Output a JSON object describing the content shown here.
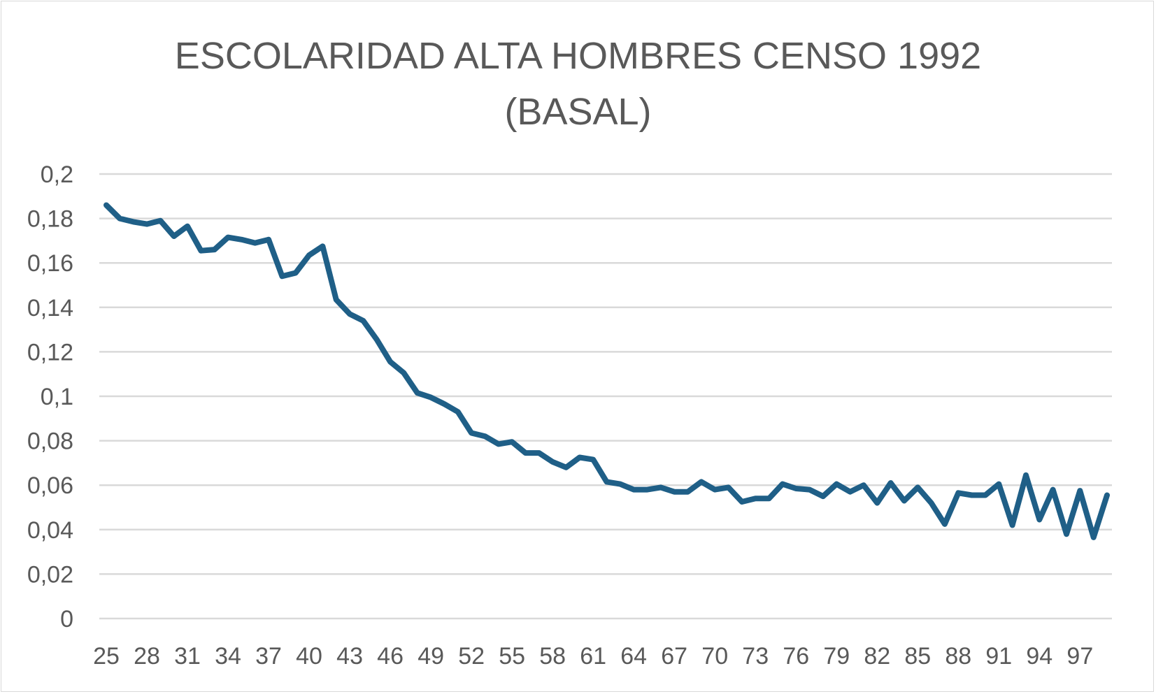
{
  "chart_data": {
    "type": "line",
    "title_lines": [
      "ESCOLARIDAD ALTA HOMBRES CENSO 1992",
      "(BASAL)"
    ],
    "xlabel": "",
    "ylabel": "",
    "ylim": [
      0,
      0.2
    ],
    "y_ticks": [
      "0",
      "0,02",
      "0,04",
      "0,06",
      "0,08",
      "0,1",
      "0,12",
      "0,14",
      "0,16",
      "0,18",
      "0,2"
    ],
    "x_tick_labels": [
      "25",
      "28",
      "31",
      "34",
      "37",
      "40",
      "43",
      "46",
      "49",
      "52",
      "55",
      "58",
      "61",
      "64",
      "67",
      "70",
      "73",
      "76",
      "79",
      "82",
      "85",
      "88",
      "91",
      "94",
      "97"
    ],
    "x_tick_every": 3,
    "grid": true,
    "legend": "none",
    "series_color": "#1f5f87",
    "x": [
      25,
      26,
      27,
      28,
      29,
      30,
      31,
      32,
      33,
      34,
      35,
      36,
      37,
      38,
      39,
      40,
      41,
      42,
      43,
      44,
      45,
      46,
      47,
      48,
      49,
      50,
      51,
      52,
      53,
      54,
      55,
      56,
      57,
      58,
      59,
      60,
      61,
      62,
      63,
      64,
      65,
      66,
      67,
      68,
      69,
      70,
      71,
      72,
      73,
      74,
      75,
      76,
      77,
      78,
      79,
      80,
      81,
      82,
      83,
      84,
      85,
      86,
      87,
      88,
      89,
      90,
      91,
      92,
      93,
      94,
      95,
      96,
      97,
      98,
      99
    ],
    "values": [
      0.186,
      0.18,
      0.1785,
      0.1775,
      0.179,
      0.172,
      0.1765,
      0.1655,
      0.166,
      0.1715,
      0.1705,
      0.169,
      0.1705,
      0.154,
      0.1555,
      0.1635,
      0.1675,
      0.1435,
      0.137,
      0.134,
      0.1255,
      0.1155,
      0.1105,
      0.1015,
      0.0995,
      0.0965,
      0.093,
      0.0835,
      0.082,
      0.0785,
      0.0795,
      0.0745,
      0.0745,
      0.0705,
      0.068,
      0.0725,
      0.0715,
      0.0615,
      0.0605,
      0.058,
      0.058,
      0.059,
      0.057,
      0.057,
      0.0615,
      0.058,
      0.059,
      0.0525,
      0.054,
      0.054,
      0.0605,
      0.0585,
      0.058,
      0.055,
      0.0605,
      0.057,
      0.06,
      0.052,
      0.061,
      0.053,
      0.059,
      0.052,
      0.0425,
      0.0565,
      0.0555,
      0.0555,
      0.0605,
      0.042,
      0.0645,
      0.0445,
      0.058,
      0.038,
      0.0575,
      0.0365,
      0.0555
    ]
  }
}
